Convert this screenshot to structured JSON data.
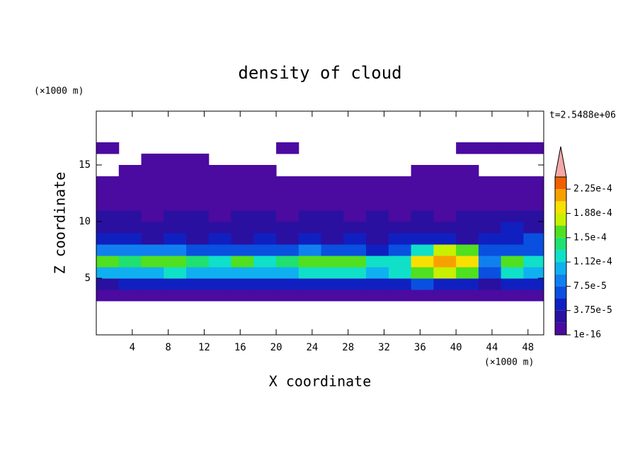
{
  "chart_data": {
    "type": "contour",
    "title": "density of cloud",
    "x_label": "X coordinate",
    "y_label": "Z coordinate",
    "x_unit": "(×1000 m)",
    "y_unit": "(×1000 m)",
    "time_label": "t=2.5488e+06",
    "xlim": [
      0,
      49.75
    ],
    "ylim": [
      0,
      19.75
    ],
    "xticks": [
      4,
      8,
      12,
      16,
      20,
      24,
      28,
      32,
      36,
      40,
      44,
      48
    ],
    "yticks": [
      5,
      10,
      15
    ],
    "x_edges": [
      0,
      2.5,
      5,
      7.5,
      10,
      12.5,
      15,
      17.5,
      20,
      22.5,
      25,
      27.5,
      30,
      32.5,
      35,
      37.5,
      40,
      42.5,
      45,
      47.5,
      50
    ],
    "z_edges": [
      3,
      4,
      5,
      6,
      7,
      8,
      9,
      10,
      11,
      12,
      13,
      14,
      15,
      16,
      17
    ],
    "values": [
      [
        5e-06,
        5e-06,
        5e-06,
        5e-06,
        5e-06,
        5e-06,
        5e-06,
        5e-06,
        5e-06,
        5e-06,
        5e-06,
        5e-06,
        5e-06,
        5e-06,
        5e-06,
        5e-06,
        5e-06,
        5e-06,
        5e-06,
        5e-06
      ],
      [
        3e-05,
        4e-05,
        5e-05,
        4e-05,
        5e-05,
        4e-05,
        5e-05,
        4e-05,
        4e-05,
        5e-05,
        4e-05,
        5e-05,
        4e-05,
        5e-05,
        6e-05,
        5e-05,
        4e-05,
        3e-05,
        4e-05,
        5e-05
      ],
      [
        0.00011,
        0.0001,
        0.00011,
        0.00012,
        0.00011,
        0.0001,
        0.00011,
        0.0001,
        0.00011,
        0.00012,
        0.00013,
        0.00012,
        0.0001,
        0.00013,
        0.00016,
        0.00017,
        0.00015,
        7e-05,
        0.00012,
        0.00011
      ],
      [
        0.00015,
        0.00014,
        0.00016,
        0.00015,
        0.00014,
        0.00013,
        0.00015,
        0.00013,
        0.00014,
        0.00015,
        0.00016,
        0.00015,
        0.00013,
        0.00012,
        0.00019,
        0.00022,
        0.0002,
        9e-05,
        0.00015,
        0.00013
      ],
      [
        9e-05,
        8e-05,
        9e-05,
        8e-05,
        7e-05,
        6e-05,
        7e-05,
        6e-05,
        7e-05,
        8e-05,
        7e-05,
        6e-05,
        5e-05,
        6e-05,
        0.00013,
        0.00017,
        0.00015,
        6e-05,
        7e-05,
        6e-05
      ],
      [
        4e-05,
        4e-05,
        3e-05,
        4e-05,
        3e-05,
        4e-05,
        3e-05,
        4e-05,
        3e-05,
        4e-05,
        3e-05,
        4e-05,
        3e-05,
        4e-05,
        5e-05,
        4e-05,
        3e-05,
        4e-05,
        5e-05,
        6e-05
      ],
      [
        3e-05,
        2.5e-05,
        2.5e-05,
        3e-05,
        2.5e-05,
        2e-05,
        2.5e-05,
        3e-05,
        2.5e-05,
        2e-05,
        2.5e-05,
        3e-05,
        2.5e-05,
        2e-05,
        2.5e-05,
        2e-05,
        2.5e-05,
        3e-05,
        4e-05,
        3e-05
      ],
      [
        2e-05,
        2e-05,
        1.5e-05,
        2e-05,
        2e-05,
        1.5e-05,
        2e-05,
        2e-05,
        1.5e-05,
        2e-05,
        2e-05,
        1.5e-05,
        2e-05,
        1.5e-05,
        2e-05,
        1.5e-05,
        2e-05,
        2e-05,
        2.5e-05,
        2e-05
      ],
      [
        1.5e-05,
        1e-05,
        1.5e-05,
        1e-05,
        1.5e-05,
        1e-05,
        1.5e-05,
        1.5e-05,
        1e-05,
        1.5e-05,
        1e-05,
        1.5e-05,
        1e-05,
        1.5e-05,
        1e-05,
        1.5e-05,
        1e-05,
        1.5e-05,
        1e-05,
        1.5e-05
      ],
      [
        1e-05,
        1e-05,
        5e-06,
        1e-05,
        1e-05,
        5e-06,
        1e-05,
        1e-05,
        5e-06,
        1e-05,
        1e-05,
        5e-06,
        1e-05,
        1e-05,
        5e-06,
        1e-05,
        1e-05,
        5e-06,
        1e-05,
        1e-05
      ],
      [
        5e-06,
        5e-06,
        5e-06,
        5e-06,
        5e-06,
        5e-06,
        5e-06,
        5e-06,
        5e-06,
        5e-06,
        5e-06,
        5e-06,
        5e-06,
        5e-06,
        5e-06,
        5e-06,
        5e-06,
        5e-06,
        5e-06,
        5e-06
      ],
      [
        null,
        5e-06,
        5e-06,
        5e-06,
        5e-06,
        5e-06,
        5e-06,
        5e-06,
        null,
        null,
        null,
        null,
        null,
        null,
        5e-06,
        5e-06,
        5e-06,
        null,
        null,
        null
      ],
      [
        null,
        null,
        5e-06,
        5e-06,
        5e-06,
        null,
        null,
        null,
        null,
        null,
        null,
        null,
        null,
        null,
        null,
        null,
        null,
        null,
        null,
        null
      ],
      [
        5e-06,
        null,
        null,
        null,
        null,
        null,
        null,
        null,
        5e-06,
        null,
        null,
        null,
        null,
        null,
        null,
        null,
        5e-06,
        5e-06,
        5e-06,
        5e-06
      ]
    ],
    "levels": [
      1e-16,
      1.875e-05,
      3.75e-05,
      5.625e-05,
      7.5e-05,
      9.375e-05,
      0.0001125,
      0.00013125,
      0.00015,
      0.00016875,
      0.0001875,
      0.00020625,
      0.000225,
      0.00024375
    ],
    "colors": [
      "#4b0aa0",
      "#2a10a0",
      "#1020c0",
      "#0a50e0",
      "#1080f0",
      "#10b0f0",
      "#10e0c8",
      "#20e070",
      "#50e020",
      "#c8f000",
      "#f8e000",
      "#f8a000",
      "#f06000",
      "#e02010"
    ],
    "colorbar_ticks": [
      {
        "value": 1e-16,
        "label": "1e-16"
      },
      {
        "value": 3.75e-05,
        "label": "3.75e-5"
      },
      {
        "value": 7.5e-05,
        "label": "7.5e-5"
      },
      {
        "value": 0.0001125,
        "label": "1.12e-4"
      },
      {
        "value": 0.00015,
        "label": "1.5e-4"
      },
      {
        "value": 0.0001875,
        "label": "1.88e-4"
      },
      {
        "value": 0.000225,
        "label": "2.25e-4"
      }
    ]
  }
}
